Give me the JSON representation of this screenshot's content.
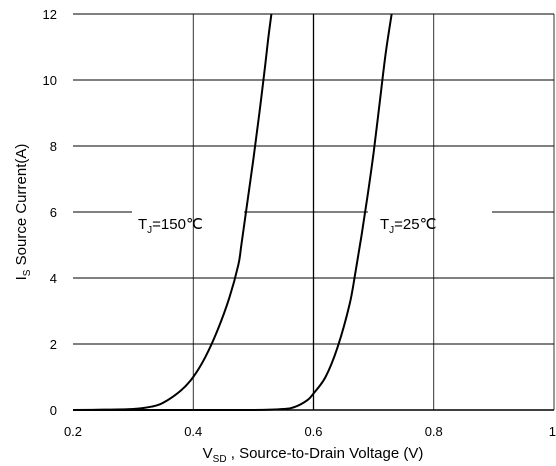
{
  "chart_data": {
    "type": "line",
    "xlabel": {
      "main": "V",
      "sub": "SD",
      "rest": " , Source-to-Drain Voltage (V)"
    },
    "ylabel": {
      "main": "I",
      "sub": "S",
      "rest": " Source Current(A)"
    },
    "xlim": [
      0.2,
      1.0
    ],
    "ylim": [
      0,
      12
    ],
    "xticks": [
      0.2,
      0.4,
      0.6,
      0.8,
      1.0
    ],
    "xtick_labels": [
      "0.2",
      "0.4",
      "0.6",
      "0.8",
      "1"
    ],
    "yticks": [
      0,
      2,
      4,
      6,
      8,
      10,
      12
    ],
    "ytick_labels": [
      "0",
      "2",
      "4",
      "6",
      "8",
      "10",
      "12"
    ],
    "grid": true,
    "series": [
      {
        "label": {
          "main": "T",
          "sub": "J",
          "rest": "=150℃"
        },
        "x": [
          0.2,
          0.25,
          0.3,
          0.33,
          0.35,
          0.38,
          0.4,
          0.42,
          0.44,
          0.46,
          0.475,
          0.48,
          0.49,
          0.5,
          0.51,
          0.52,
          0.525,
          0.53
        ],
        "y": [
          0.0,
          0.01,
          0.03,
          0.1,
          0.22,
          0.6,
          1.0,
          1.6,
          2.4,
          3.4,
          4.4,
          5.0,
          6.3,
          7.6,
          9.0,
          10.5,
          11.3,
          12.0
        ]
      },
      {
        "label": {
          "main": "T",
          "sub": "J",
          "rest": "=25℃"
        },
        "x": [
          0.2,
          0.3,
          0.4,
          0.5,
          0.55,
          0.57,
          0.59,
          0.6,
          0.62,
          0.64,
          0.66,
          0.67,
          0.68,
          0.69,
          0.7,
          0.71,
          0.72,
          0.73
        ],
        "y": [
          0.0,
          0.0,
          0.0,
          0.0,
          0.03,
          0.1,
          0.3,
          0.5,
          1.0,
          1.9,
          3.2,
          4.2,
          5.3,
          6.5,
          7.8,
          9.3,
          10.8,
          12.0
        ]
      }
    ]
  }
}
